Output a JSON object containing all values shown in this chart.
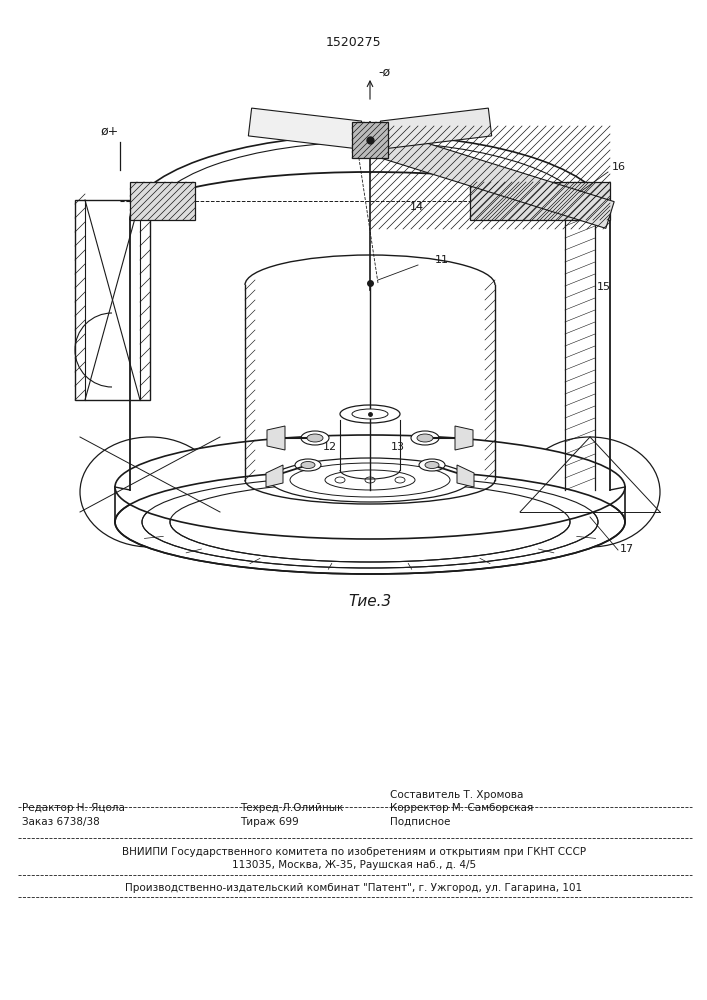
{
  "title": "1520275",
  "fig_label": "Τие.3",
  "bg_color": "#ffffff",
  "line_color": "#1a1a1a",
  "title_fontsize": 9,
  "label_fontsize": 8,
  "footer": {
    "line1_left": "Редактор Н. Яцола",
    "line1_mid": "Техред Л.Олийнык",
    "line1_right": "Корректор М. Самборская",
    "line0": "Составитель Т. Хромова",
    "line2": "Заказ 6738/38",
    "line2_mid": "Тираж 699",
    "line2_right": "Подписное",
    "line3": "ВНИИПИ Государственного комитета по изобретениям и открытиям при ГКНТ СССР",
    "line4": "113035, Москва, Ж-35, Раушская наб., д. 4/5",
    "line5": "Производственно-издательский комбинат \"Патент\", г. Ужгород, ул. Гагарина, 101"
  }
}
